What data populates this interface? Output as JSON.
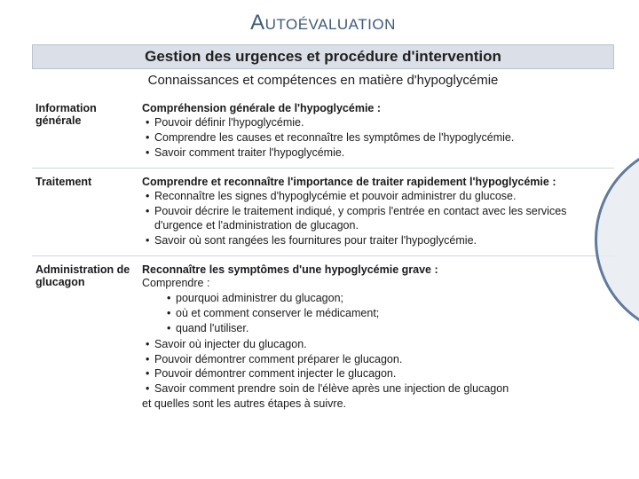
{
  "title": "Autoévaluation",
  "subtitle_bar": "Gestion des urgences et procédure d'intervention",
  "subtitle2": "Connaissances et compétences en matière d'hypoglycémie",
  "colors": {
    "title_color": "#3f5b78",
    "bar_bg": "#dbe0e8",
    "bar_border": "#b9c3d0",
    "row_divider": "#cfd6e0",
    "accent_ring": "#4f6d8f",
    "accent_fill": "#e9edf2",
    "text": "#1a1a1a",
    "background": "#ffffff"
  },
  "rows": [
    {
      "left": "Information générale",
      "head": "Compréhension générale de l'hypoglycémie :",
      "bullets": [
        "Pouvoir définir l'hypoglycémie.",
        "Comprendre les causes et reconnaître les symptômes de l'hypoglycémie.",
        "Savoir comment traiter l'hypoglycémie."
      ]
    },
    {
      "left": "Traitement",
      "head": "Comprendre et reconnaître l'importance de traiter rapidement l'hypoglycémie :",
      "bullets": [
        "Reconnaître les signes d'hypoglycémie et pouvoir administrer du glucose.",
        "Pouvoir décrire le traitement indiqué, y compris l'entrée en contact avec les services d'urgence et l'administration de glucagon.",
        "Savoir où sont rangées les fournitures pour traiter l'hypoglycémie."
      ]
    },
    {
      "left": "Administration de glucagon",
      "head": "Reconnaître les symptômes d'une hypoglycémie grave :",
      "pre": "Comprendre :",
      "sub": [
        "pourquoi administrer du glucagon;",
        "où et comment conserver le médicament;",
        "quand l'utiliser."
      ],
      "bullets": [
        "Savoir où injecter du glucagon.",
        "Pouvoir démontrer comment préparer le glucagon.",
        "Pouvoir démontrer comment injecter le glucagon.",
        "Savoir comment prendre soin de l'élève après une injection de glucagon"
      ],
      "post": "et quelles sont les autres étapes à suivre."
    }
  ]
}
